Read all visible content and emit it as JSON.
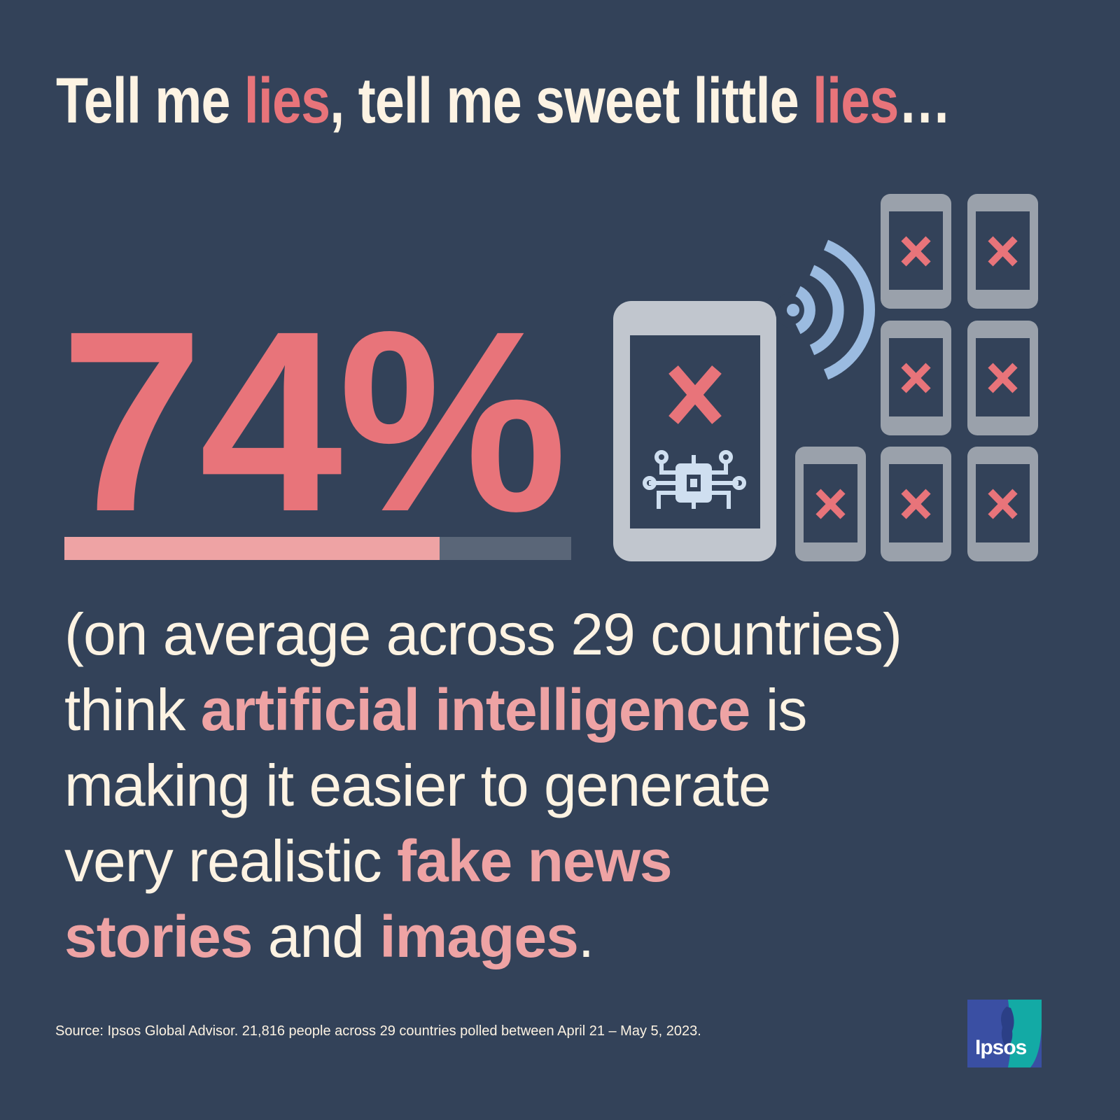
{
  "title": {
    "p1": "Tell me ",
    "p2": "lies",
    "p3": ", tell me sweet little ",
    "p4": "lies",
    "p5": "…"
  },
  "stat": {
    "value": "74%",
    "fraction": 0.74
  },
  "body": {
    "l1": "(on average across 29 countries)",
    "l2a": "think ",
    "l2b": "artificial intelligence",
    "l2c": " is",
    "l3": "making it easier to generate",
    "l4a": "very realistic ",
    "l4b": "fake news",
    "l5a": "stories",
    "l5b": " and ",
    "l5c": "images",
    "l5d": "."
  },
  "source": "Source: Ipsos Global Advisor. 21,816 people across 29 countries polled between April 21 – May 5, 2023.",
  "logo": {
    "text": "Ipsos"
  },
  "colors": {
    "background": "#334259",
    "accent": "#e8747a",
    "highlight": "#eea3a4",
    "text": "#fdf3e3",
    "wifi": "#9bbbe0"
  },
  "icons": [
    "smartphone-ai-chip-icon",
    "wifi-signal-icon",
    "fake-device-x-icon"
  ]
}
